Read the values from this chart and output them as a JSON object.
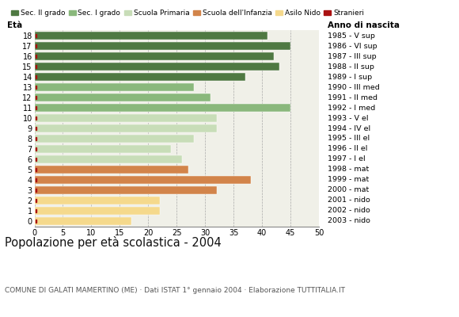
{
  "ages": [
    18,
    17,
    16,
    15,
    14,
    13,
    12,
    11,
    10,
    9,
    8,
    7,
    6,
    5,
    4,
    3,
    2,
    1,
    0
  ],
  "values": [
    41,
    45,
    42,
    43,
    37,
    28,
    31,
    45,
    32,
    32,
    28,
    24,
    26,
    27,
    38,
    32,
    22,
    22,
    17
  ],
  "anno_nascita": [
    "1985 - V sup",
    "1986 - VI sup",
    "1987 - III sup",
    "1988 - II sup",
    "1989 - I sup",
    "1990 - III med",
    "1991 - II med",
    "1992 - I med",
    "1993 - V el",
    "1994 - IV el",
    "1995 - III el",
    "1996 - II el",
    "1997 - I el",
    "1998 - mat",
    "1999 - mat",
    "2000 - mat",
    "2001 - nido",
    "2002 - nido",
    "2003 - nido"
  ],
  "bar_colors": [
    "#4f7942",
    "#4f7942",
    "#4f7942",
    "#4f7942",
    "#4f7942",
    "#8ab87c",
    "#8ab87c",
    "#8ab87c",
    "#c8ddb8",
    "#c8ddb8",
    "#c8ddb8",
    "#c8ddb8",
    "#c8ddb8",
    "#d2844a",
    "#d2844a",
    "#d2844a",
    "#f5d98c",
    "#f5d98c",
    "#f5d98c"
  ],
  "stranieri_color": "#aa1111",
  "legend_labels": [
    "Sec. II grado",
    "Sec. I grado",
    "Scuola Primaria",
    "Scuola dell'Infanzia",
    "Asilo Nido",
    "Stranieri"
  ],
  "legend_colors": [
    "#4f7942",
    "#8ab87c",
    "#c8ddb8",
    "#d2844a",
    "#f5d98c",
    "#aa1111"
  ],
  "title": "Popolazione per età scolastica - 2004",
  "subtitle": "COMUNE DI GALATI MAMERTINO (ME) · Dati ISTAT 1° gennaio 2004 · Elaborazione TUTTITALIA.IT",
  "xlabel_eta": "Età",
  "xlabel_anno": "Anno di nascita",
  "xlim": [
    0,
    50
  ],
  "xticks": [
    0,
    5,
    10,
    15,
    20,
    25,
    30,
    35,
    40,
    45,
    50
  ],
  "bg_color": "#ffffff",
  "plot_bg": "#f0f0e8",
  "grid_color": "#aaaaaa",
  "bar_height": 0.75
}
